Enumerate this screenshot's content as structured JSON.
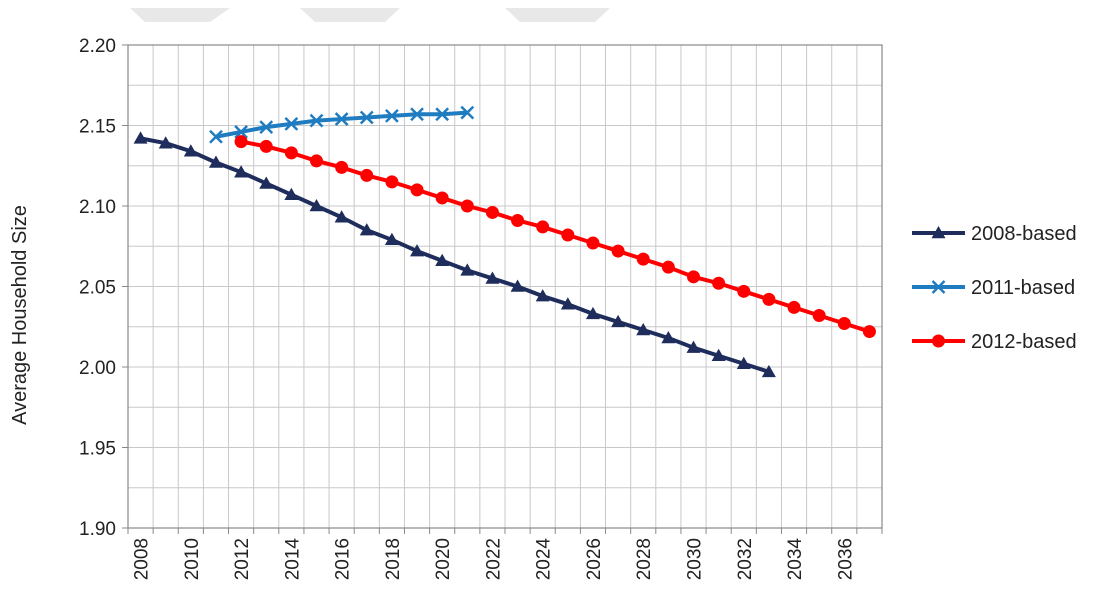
{
  "chart_data": {
    "type": "line",
    "title": "",
    "xlabel": "",
    "ylabel": "Average Household Size",
    "xlim": [
      2007.5,
      2037.5
    ],
    "ylim": [
      1.9,
      2.2
    ],
    "x_ticks": [
      "2008",
      "2010",
      "2012",
      "2014",
      "2016",
      "2018",
      "2020",
      "2022",
      "2024",
      "2026",
      "2028",
      "2030",
      "2032",
      "2034",
      "2036"
    ],
    "y_ticks": [
      "2.20",
      "2.15",
      "2.10",
      "2.05",
      "2.00",
      "1.95",
      "1.90"
    ],
    "grid": true,
    "legend_position": "right",
    "series": [
      {
        "name": "2008-based",
        "color": "#1F2D5C",
        "marker": "triangle",
        "x": [
          2008,
          2009,
          2010,
          2011,
          2012,
          2013,
          2014,
          2015,
          2016,
          2017,
          2018,
          2019,
          2020,
          2021,
          2022,
          2023,
          2024,
          2025,
          2026,
          2027,
          2028,
          2029,
          2030,
          2031,
          2032,
          2033
        ],
        "values": [
          2.142,
          2.139,
          2.134,
          2.127,
          2.121,
          2.114,
          2.107,
          2.1,
          2.093,
          2.085,
          2.079,
          2.072,
          2.066,
          2.06,
          2.055,
          2.05,
          2.044,
          2.039,
          2.033,
          2.028,
          2.023,
          2.018,
          2.012,
          2.007,
          2.002,
          1.997
        ]
      },
      {
        "name": "2011-based",
        "color": "#1F7CC1",
        "marker": "x",
        "x": [
          2011,
          2012,
          2013,
          2014,
          2015,
          2016,
          2017,
          2018,
          2019,
          2020,
          2021
        ],
        "values": [
          2.143,
          2.146,
          2.149,
          2.151,
          2.153,
          2.154,
          2.155,
          2.156,
          2.157,
          2.157,
          2.158
        ]
      },
      {
        "name": "2012-based",
        "color": "#FF0000",
        "marker": "circle",
        "x": [
          2012,
          2013,
          2014,
          2015,
          2016,
          2017,
          2018,
          2019,
          2020,
          2021,
          2022,
          2023,
          2024,
          2025,
          2026,
          2027,
          2028,
          2029,
          2030,
          2031,
          2032,
          2033,
          2034,
          2035,
          2036,
          2037
        ],
        "values": [
          2.14,
          2.137,
          2.133,
          2.128,
          2.124,
          2.119,
          2.115,
          2.11,
          2.105,
          2.1,
          2.096,
          2.091,
          2.087,
          2.082,
          2.077,
          2.072,
          2.067,
          2.062,
          2.056,
          2.052,
          2.047,
          2.042,
          2.037,
          2.032,
          2.027,
          2.022
        ]
      }
    ]
  }
}
